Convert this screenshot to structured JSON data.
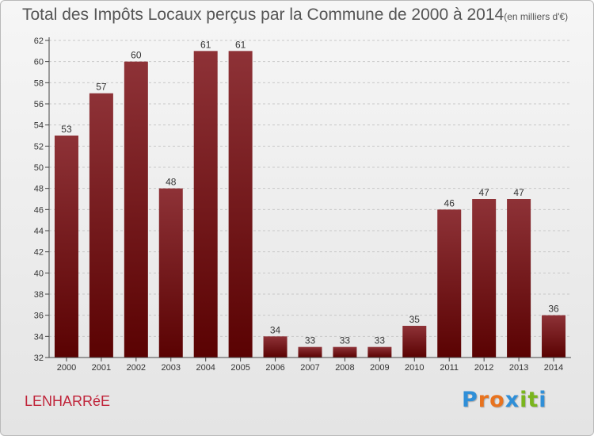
{
  "header": {
    "title": "Total des Impôts Locaux perçus par la Commune de 2000 à 2014",
    "unit": "(en milliers d'€)"
  },
  "footer": {
    "commune": "LENHARRéE",
    "logo": {
      "letters": [
        "P",
        "r",
        "o",
        "x",
        "i",
        "t",
        "i"
      ],
      "colors": [
        "#2f8fd8",
        "#e8731f",
        "#e8731f",
        "#2f8fd8",
        "#7ab51d",
        "#7ab51d",
        "#2f8fd8"
      ]
    }
  },
  "colors": {
    "bar_top": "#8e3237",
    "bar_bottom": "#5a0202",
    "axis": "#444444",
    "grid": "#c8c8c8"
  },
  "chart_data": {
    "type": "bar",
    "categories": [
      "2000",
      "2001",
      "2002",
      "2003",
      "2004",
      "2005",
      "2006",
      "2007",
      "2008",
      "2009",
      "2010",
      "2011",
      "2012",
      "2013",
      "2014"
    ],
    "values": [
      53,
      57,
      60,
      48,
      61,
      61,
      34,
      33,
      33,
      33,
      35,
      46,
      47,
      47,
      36
    ],
    "ylim": [
      32,
      62
    ],
    "yticks": [
      32,
      34,
      36,
      38,
      40,
      42,
      44,
      46,
      48,
      50,
      52,
      54,
      56,
      58,
      60,
      62
    ],
    "grid": "horizontal dashed"
  }
}
